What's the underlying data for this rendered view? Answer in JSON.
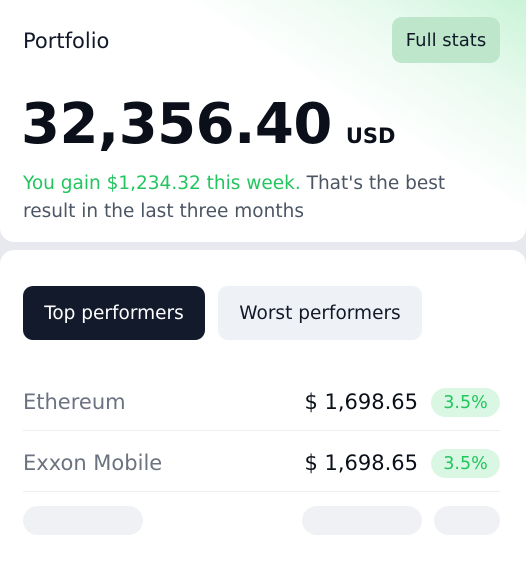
{
  "portfolio": {
    "title": "Portfolio",
    "full_stats_label": "Full stats",
    "amount": "32,356.40",
    "currency": "USD",
    "gain_text": "You gain $1,234.32 this week.",
    "summary_text": " That's the best result in the last three months"
  },
  "performers": {
    "tabs": [
      {
        "label": "Top performers",
        "active": true
      },
      {
        "label": "Worst performers",
        "active": false
      }
    ],
    "rows": [
      {
        "name": "Ethereum",
        "price": "$ 1,698.65",
        "change": "3.5%"
      },
      {
        "name": "Exxon Mobile",
        "price": "$ 1,698.65",
        "change": "3.5%"
      }
    ]
  },
  "colors": {
    "accent_green": "#22c55e",
    "dark": "#131a2c",
    "badge_bg": "#d9f7e3"
  }
}
